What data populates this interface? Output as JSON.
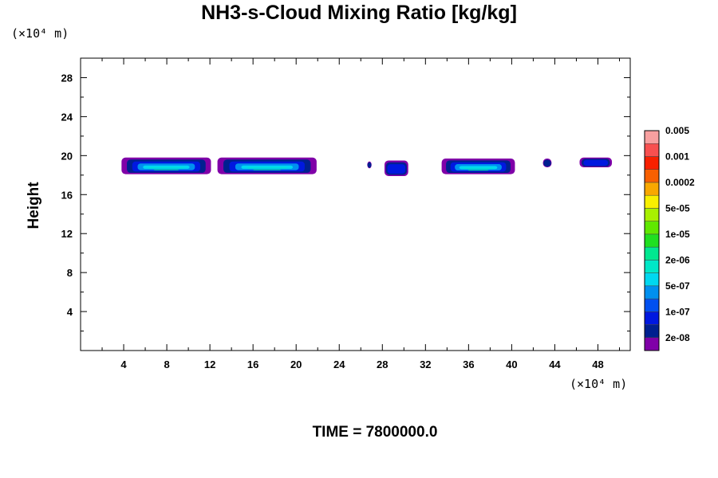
{
  "chart_data": {
    "type": "contour",
    "title": "NH3-s-Cloud Mixing Ratio [kg/kg]",
    "ylabel": "Height",
    "x_unit": "(×10⁴ m)",
    "y_unit": "(×10⁴ m)",
    "time_label": "TIME = 7800000.0",
    "xlim": [
      0,
      51
    ],
    "ylim": [
      0,
      30
    ],
    "x_ticks": [
      4,
      8,
      12,
      16,
      20,
      24,
      28,
      32,
      36,
      40,
      44,
      48
    ],
    "y_ticks": [
      4,
      8,
      12,
      16,
      20,
      24,
      28
    ],
    "grid": false,
    "colorbar": {
      "colors": [
        "#8000a8",
        "#002090",
        "#0018e0",
        "#0050f0",
        "#0090f0",
        "#00d8f0",
        "#00e8c8",
        "#00e890",
        "#20e020",
        "#60e800",
        "#a8f000",
        "#f8f000",
        "#f8a800",
        "#f86000",
        "#f82000",
        "#f85050",
        "#f8a0a0"
      ],
      "labels": [
        "2e-08",
        "1e-07",
        "5e-07",
        "2e-06",
        "1e-05",
        "5e-05",
        "0.0002",
        "0.001",
        "0.005"
      ]
    },
    "cloud_bands": [
      {
        "x0": 3.8,
        "x1": 12.1,
        "y0": 18.1,
        "y1": 19.8,
        "peak": "2e-06"
      },
      {
        "x0": 12.7,
        "x1": 21.9,
        "y0": 18.1,
        "y1": 19.8,
        "peak": "2e-06"
      },
      {
        "x0": 26.6,
        "x1": 27.0,
        "y0": 18.7,
        "y1": 19.4,
        "peak": "2e-08"
      },
      {
        "x0": 28.2,
        "x1": 30.4,
        "y0": 17.9,
        "y1": 19.5,
        "peak": "1e-07"
      },
      {
        "x0": 33.5,
        "x1": 40.3,
        "y0": 18.1,
        "y1": 19.7,
        "peak": "2e-06"
      },
      {
        "x0": 42.9,
        "x1": 43.7,
        "y0": 18.8,
        "y1": 19.7,
        "peak": "2e-08"
      },
      {
        "x0": 46.3,
        "x1": 49.3,
        "y0": 18.8,
        "y1": 19.8,
        "peak": "1e-07"
      }
    ]
  }
}
